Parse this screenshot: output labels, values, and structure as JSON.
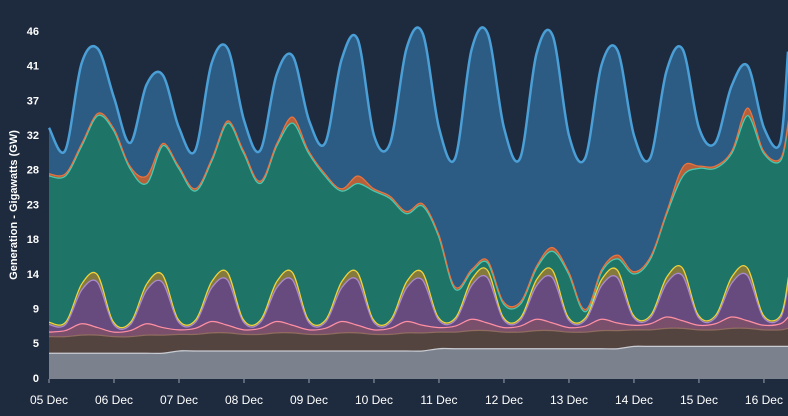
{
  "chart_data": {
    "type": "stacked-area",
    "y_label": "Generation - Gigawatts (GW)",
    "x": [
      0,
      0.25,
      0.5,
      0.75,
      1,
      1.25,
      1.5,
      1.75,
      2,
      2.25,
      2.5,
      2.75,
      3,
      3.25,
      3.5,
      3.75,
      4,
      4.25,
      4.5,
      4.75,
      5,
      5.25,
      5.5,
      5.75,
      6,
      6.25,
      6.5,
      6.75,
      7,
      7.25,
      7.5,
      7.75,
      8,
      8.25,
      8.5,
      8.75,
      9,
      9.25,
      9.5,
      9.75,
      10,
      10.25,
      10.5,
      10.75,
      11,
      11.25,
      11.37
    ],
    "xlim": [
      0,
      11.37
    ],
    "xticks": [
      {
        "value": 0,
        "label": "05 Dec"
      },
      {
        "value": 1,
        "label": "06 Dec"
      },
      {
        "value": 2,
        "label": "07 Dec"
      },
      {
        "value": 3,
        "label": "08 Dec"
      },
      {
        "value": 4,
        "label": "09 Dec"
      },
      {
        "value": 5,
        "label": "10 Dec"
      },
      {
        "value": 6,
        "label": "11 Dec"
      },
      {
        "value": 7,
        "label": "12 Dec"
      },
      {
        "value": 8,
        "label": "13 Dec"
      },
      {
        "value": 9,
        "label": "14 Dec"
      },
      {
        "value": 10,
        "label": "15 Dec"
      },
      {
        "value": 11,
        "label": "16 Dec"
      }
    ],
    "ylim": [
      0,
      46
    ],
    "yticks": [
      0,
      {
        "value": 4.6,
        "label": "5"
      },
      {
        "value": 9.2,
        "label": "9"
      },
      {
        "value": 13.8,
        "label": "14"
      },
      {
        "value": 18.4,
        "label": "18"
      },
      23,
      {
        "value": 27.6,
        "label": "28"
      },
      {
        "value": 32.2,
        "label": "32"
      },
      {
        "value": 36.8,
        "label": "37"
      },
      {
        "value": 41.4,
        "label": "41"
      },
      46
    ],
    "series": [
      {
        "color": "#c9ccd3",
        "fill": "#7c828d",
        "values": [
          3.5,
          3.5,
          3.5,
          3.5,
          3.5,
          3.5,
          3.5,
          3.5,
          3.8,
          3.8,
          3.8,
          3.8,
          3.8,
          3.8,
          3.8,
          3.8,
          3.8,
          3.8,
          3.8,
          3.8,
          3.8,
          3.8,
          3.8,
          3.8,
          4.1,
          4.1,
          4.1,
          4.1,
          4.1,
          4.1,
          4.1,
          4.1,
          4.1,
          4.1,
          4.1,
          4.1,
          4.4,
          4.4,
          4.4,
          4.4,
          4.4,
          4.4,
          4.4,
          4.4,
          4.4,
          4.4,
          4.4
        ]
      },
      {
        "color": "#8f6b60",
        "fill": "#54443f",
        "values": [
          2.2,
          2.2,
          2.4,
          2.4,
          2.2,
          2.2,
          2.4,
          2.4,
          2.2,
          2.2,
          2.4,
          2.4,
          2.2,
          2.2,
          2.4,
          2.4,
          2.2,
          2.2,
          2.4,
          2.4,
          2.2,
          2.2,
          2.4,
          2.4,
          2.2,
          2.2,
          2.4,
          2.4,
          2.2,
          2.2,
          2.4,
          2.4,
          2.2,
          2.2,
          2.4,
          2.4,
          2.2,
          2.2,
          2.4,
          2.4,
          2.2,
          2.2,
          2.4,
          2.4,
          2.2,
          2.2,
          2.4
        ]
      },
      {
        "color": "#ff8fa3",
        "fill": "#7a4f6c",
        "values": [
          0.6,
          0.8,
          1.5,
          1.0,
          0.6,
          0.8,
          1.5,
          1.0,
          0.6,
          0.8,
          1.5,
          1.0,
          0.6,
          0.8,
          1.5,
          1.0,
          0.6,
          0.8,
          1.5,
          1.0,
          0.6,
          0.8,
          1.5,
          1.0,
          0.6,
          0.8,
          1.5,
          1.0,
          0.6,
          0.8,
          1.5,
          1.0,
          0.6,
          0.8,
          1.5,
          1.0,
          0.6,
          0.8,
          1.5,
          1.0,
          0.6,
          0.8,
          1.5,
          1.0,
          0.6,
          0.8,
          1.5
        ]
      },
      {
        "color": "#a98ad0",
        "fill": "#674b7f",
        "values": [
          1.0,
          0.8,
          4.5,
          6.0,
          1.0,
          0.8,
          4.5,
          6.0,
          1.0,
          0.8,
          4.5,
          6.0,
          1.0,
          0.8,
          4.5,
          6.0,
          1.0,
          0.8,
          4.5,
          6.0,
          1.0,
          0.8,
          4.5,
          6.0,
          1.0,
          0.8,
          4.5,
          6.0,
          1.0,
          0.8,
          4.5,
          6.0,
          1.0,
          0.8,
          4.5,
          6.0,
          1.0,
          0.8,
          4.5,
          6.0,
          1.0,
          0.8,
          4.5,
          6.0,
          1.0,
          0.8,
          4.5
        ]
      },
      {
        "color": "#f0d43c",
        "fill": "#857a3d",
        "values": [
          0.3,
          0.3,
          0.8,
          1.0,
          0.3,
          0.3,
          0.8,
          1.0,
          0.3,
          0.3,
          0.8,
          1.0,
          0.3,
          0.3,
          0.8,
          1.0,
          0.3,
          0.3,
          0.8,
          1.0,
          0.3,
          0.3,
          0.8,
          1.0,
          0.3,
          0.3,
          0.8,
          1.0,
          0.3,
          0.3,
          0.8,
          1.0,
          0.3,
          0.3,
          0.8,
          1.0,
          0.3,
          0.3,
          0.8,
          1.0,
          0.3,
          0.3,
          0.8,
          1.0,
          0.3,
          0.3,
          0.8
        ]
      },
      {
        "color": "#46cbb4",
        "fill": "#1f7468",
        "values": [
          19.4,
          19.4,
          18.3,
          21.1,
          25.4,
          20.4,
          13.3,
          17.1,
          20.1,
          17.1,
          16.0,
          19.8,
          22.1,
          18.1,
          18.0,
          19.8,
          22.1,
          19.1,
          12.0,
          11.8,
          17.1,
          16.1,
          9.0,
          8.8,
          10.8,
          3.8,
          1.0,
          1.0,
          1.8,
          1.8,
          1.5,
          2.5,
          5.8,
          0.8,
          1.0,
          1.5,
          5.5,
          7.5,
          8.4,
          12.2,
          19.5,
          19.5,
          16.4,
          20.2,
          21.5,
          20.5,
          20.5
        ]
      },
      {
        "color": "#e8743f",
        "fill": "#b8603a",
        "values": [
          0.3,
          0.3,
          0.3,
          0.3,
          0.3,
          0.3,
          1.0,
          0.3,
          0.3,
          0.3,
          0.3,
          0.3,
          0.3,
          0.3,
          0.3,
          0.8,
          0.3,
          0.3,
          0.3,
          1.0,
          0.3,
          0.3,
          0.3,
          0.3,
          0.3,
          0.3,
          0.3,
          0.3,
          0.3,
          0.3,
          0.3,
          0.5,
          0.3,
          0.3,
          0.3,
          0.5,
          0.3,
          0.3,
          0.3,
          1.2,
          0.3,
          0.3,
          0.3,
          1.0,
          0.3,
          0.3,
          0.3
        ]
      },
      {
        "color": "#4a9fd6",
        "fill": "#2c5b84",
        "values": [
          6,
          3,
          10.5,
          8.5,
          4,
          3,
          12,
          9,
          5,
          5,
          12.5,
          9.5,
          4,
          4,
          9,
          8,
          4,
          4,
          17,
          18,
          7,
          7,
          21.5,
          22.5,
          14,
          17,
          29,
          30,
          23,
          19,
          28,
          28,
          18,
          20,
          27,
          27,
          18,
          13,
          18.5,
          15.5,
          5,
          3,
          8.5,
          5.5,
          3,
          2,
          9
        ]
      }
    ]
  }
}
